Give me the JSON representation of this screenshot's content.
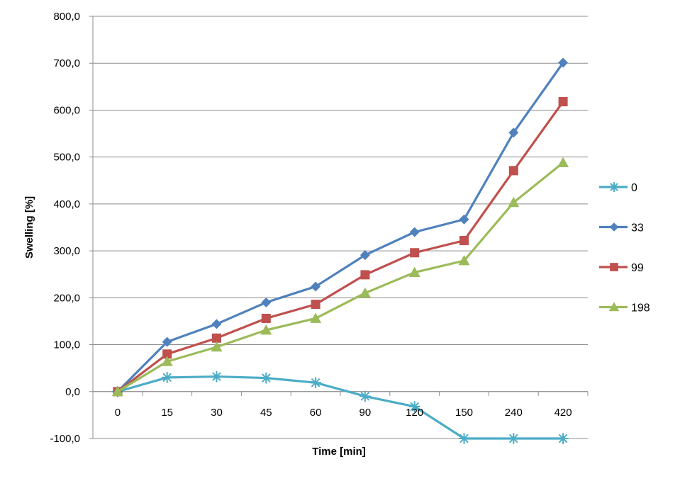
{
  "chart_data": {
    "type": "line",
    "title": "",
    "xlabel": "Time [min]",
    "ylabel": "Swelling [%]",
    "categories": [
      "0",
      "15",
      "30",
      "45",
      "60",
      "90",
      "120",
      "150",
      "240",
      "420"
    ],
    "ylim": [
      -100,
      800
    ],
    "yticks": [
      "-100,0",
      "0,0",
      "100,0",
      "200,0",
      "300,0",
      "400,0",
      "500,0",
      "600,0",
      "700,0",
      "800,0"
    ],
    "ytick_values": [
      -100,
      0,
      100,
      200,
      300,
      400,
      500,
      600,
      700,
      800
    ],
    "grid": true,
    "legend_position": "right",
    "series": [
      {
        "name": "0",
        "color": "#4BACC6",
        "marker": "asterisk",
        "values": [
          0,
          30,
          32,
          29,
          19,
          -10,
          -32,
          -100,
          -100,
          -100
        ]
      },
      {
        "name": "33",
        "color": "#4F81BD",
        "marker": "diamond",
        "values": [
          0,
          106,
          144,
          190,
          224,
          291,
          340,
          367,
          552,
          701
        ]
      },
      {
        "name": "99",
        "color": "#C0504D",
        "marker": "square",
        "values": [
          0,
          80,
          114,
          156,
          186,
          249,
          296,
          322,
          471,
          618
        ]
      },
      {
        "name": "198",
        "color": "#9BBB59",
        "marker": "triangle",
        "values": [
          0,
          64,
          95,
          131,
          156,
          210,
          254,
          279,
          403,
          488
        ]
      }
    ]
  }
}
